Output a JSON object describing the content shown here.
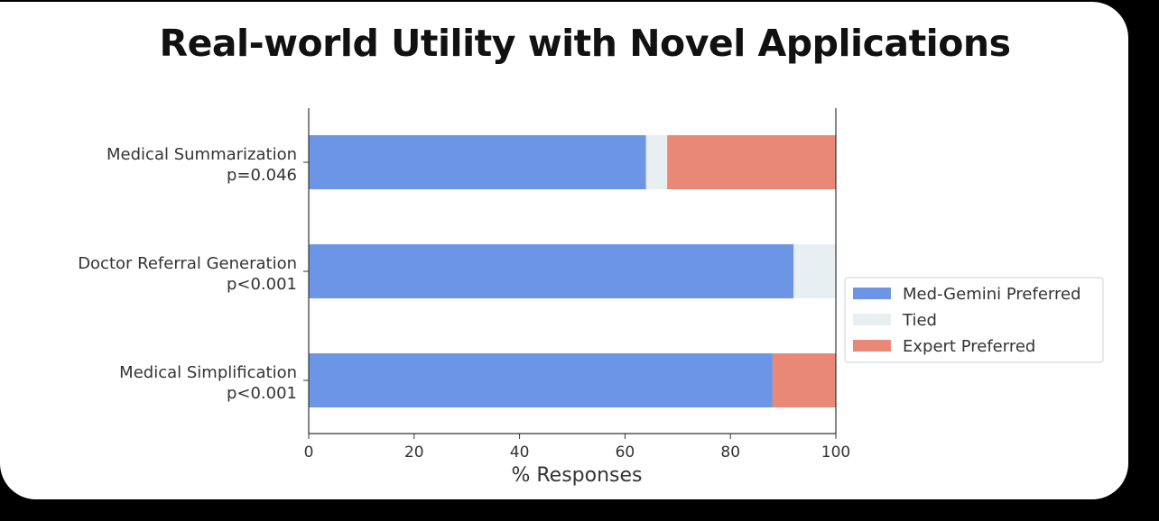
{
  "chart_data": {
    "type": "bar",
    "orientation": "horizontal",
    "stacked": true,
    "title": "Real-world Utility with Novel Applications",
    "xlabel": "% Responses",
    "ylabel": "",
    "xlim": [
      0,
      100
    ],
    "xticks": [
      "0",
      "20",
      "40",
      "60",
      "80",
      "100"
    ],
    "categories": [
      {
        "name": "Medical Summarization",
        "pvalue": "p=0.046"
      },
      {
        "name": "Doctor Referral Generation",
        "pvalue": "p<0.001"
      },
      {
        "name": "Medical Simplification",
        "pvalue": "p<0.001"
      }
    ],
    "series": [
      {
        "name": "Med-Gemini Preferred",
        "color": "#6d95e6",
        "values": [
          64,
          92,
          88
        ]
      },
      {
        "name": "Tied",
        "color": "#e8eff2",
        "values": [
          4,
          8,
          0
        ]
      },
      {
        "name": "Expert Preferred",
        "color": "#ea8878",
        "values": [
          32,
          0,
          12
        ]
      }
    ],
    "grid": false,
    "legend_position": "right"
  }
}
